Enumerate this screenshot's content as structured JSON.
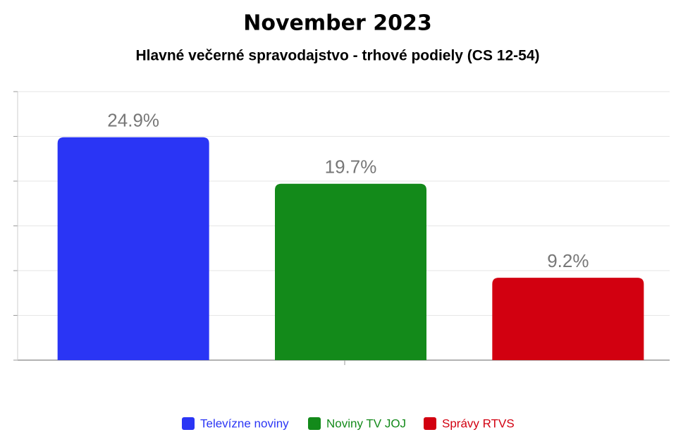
{
  "chart_data": {
    "type": "bar",
    "title": "November 2023",
    "subtitle": "Hlavné večerné spravodajstvo - trhové podiely (CS 12-54)",
    "categories": [
      null
    ],
    "series": [
      {
        "name": "Televízne noviny",
        "color": "#2a35f5",
        "values": [
          24.9
        ],
        "value_labels": [
          "24.9%"
        ]
      },
      {
        "name": "Noviny TV JOJ",
        "color": "#138a1a",
        "values": [
          19.7
        ],
        "value_labels": [
          "19.7%"
        ]
      },
      {
        "name": "Správy RTVS",
        "color": "#d20010",
        "values": [
          9.2
        ],
        "value_labels": [
          "9.2%"
        ]
      }
    ],
    "ylim": [
      0,
      30
    ],
    "yticks": [
      0,
      5,
      10,
      15,
      20,
      25,
      30
    ],
    "grid": true
  }
}
